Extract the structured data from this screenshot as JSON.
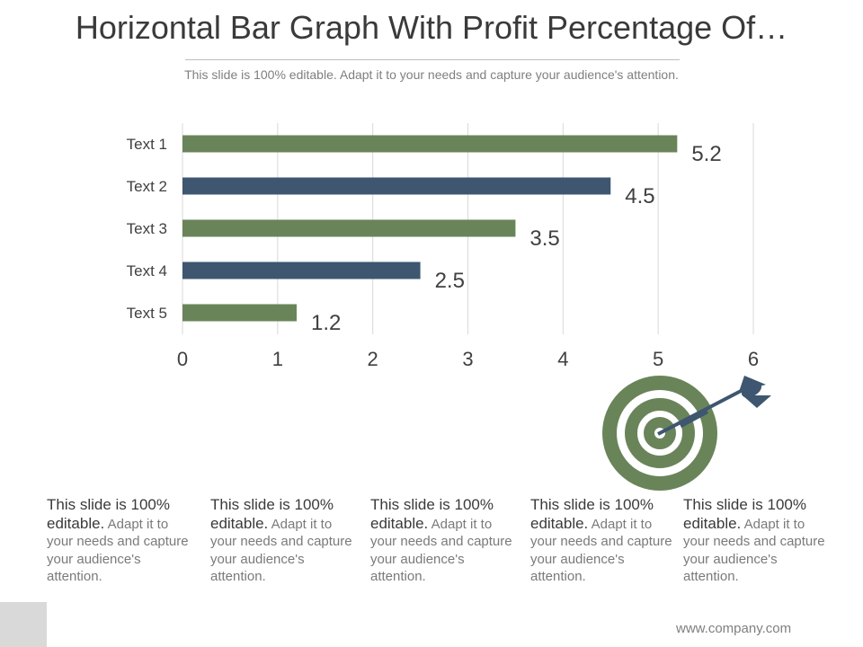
{
  "slide": {
    "title": "Horizontal Bar Graph With Profit Percentage Of…",
    "subtitle": "This slide is 100% editable. Adapt it to your needs and capture your audience's attention.",
    "footer_url": "www.company.com"
  },
  "text_blocks": [
    {
      "lead": "This slide is 100% editable.",
      "body": "Adapt it to your needs and capture your audience's attention."
    },
    {
      "lead": "This slide is 100% editable.",
      "body": "Adapt it to your needs and capture your audience's attention."
    },
    {
      "lead": "This slide is 100% editable.",
      "body": "Adapt it to your needs and capture your audience's attention."
    },
    {
      "lead": "This slide is 100% editable.",
      "body": "Adapt it to your needs and capture your audience's attention."
    },
    {
      "lead": "This slide is 100% editable.",
      "body": "Adapt it to your needs and capture your audience's attention."
    }
  ],
  "colors": {
    "green": "#6a845a",
    "navy": "#3e5670",
    "grid": "#d9d9d9",
    "target_green": "#6a845a",
    "dart": "#3e5670"
  },
  "icons": [
    "target-icon",
    "dart-icon"
  ],
  "chart_data": {
    "type": "bar",
    "orientation": "horizontal",
    "categories": [
      "Text 1",
      "Text 2",
      "Text 3",
      "Text 4",
      "Text 5"
    ],
    "values": [
      5.2,
      4.5,
      3.5,
      2.5,
      1.2
    ],
    "data_labels": [
      "5.2",
      "4.5",
      "3.5",
      "2.5",
      "1.2"
    ],
    "bar_colors": [
      "#6a845a",
      "#3e5670",
      "#6a845a",
      "#3e5670",
      "#6a845a"
    ],
    "xlim": [
      0,
      6
    ],
    "xticks": [
      "0",
      "1",
      "2",
      "3",
      "4",
      "5",
      "6"
    ],
    "grid": true,
    "title": "",
    "xlabel": "",
    "ylabel": ""
  }
}
